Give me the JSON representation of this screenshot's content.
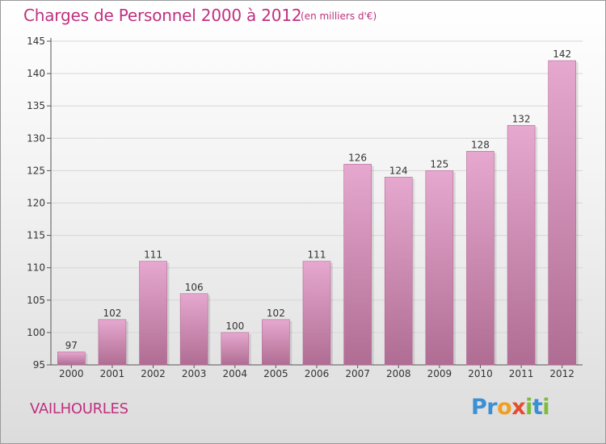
{
  "chart_data": {
    "type": "bar",
    "title": "Charges de Personnel 2000 à 2012",
    "subtitle": "(en milliers d'€)",
    "categories": [
      "2000",
      "2001",
      "2002",
      "2003",
      "2004",
      "2005",
      "2006",
      "2007",
      "2008",
      "2009",
      "2010",
      "2011",
      "2012"
    ],
    "values": [
      97,
      102,
      111,
      106,
      100,
      102,
      111,
      126,
      124,
      125,
      128,
      132,
      142
    ],
    "ylim": [
      95,
      145
    ],
    "yticks": [
      95,
      100,
      105,
      110,
      115,
      120,
      125,
      130,
      135,
      140,
      145
    ],
    "grid": true,
    "colors": {
      "bar_top": "#e6a8cf",
      "bar_bottom": "#b06d93",
      "accent": "#c0307f"
    }
  },
  "commune": "VAILHOURLES",
  "logo": {
    "letters": [
      "P",
      "r",
      "o",
      "x",
      "i",
      "t",
      "i"
    ],
    "colors": [
      "#3b8fd4",
      "#3b8fd4",
      "#f0a020",
      "#e84a2e",
      "#7cbd3a",
      "#3b8fd4",
      "#7cbd3a"
    ]
  }
}
